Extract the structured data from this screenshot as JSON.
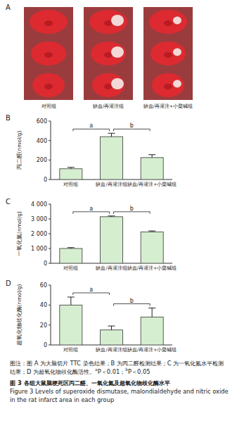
{
  "panel_a": {
    "label": "A",
    "groups": [
      "对照组",
      "缺血/再灌注组",
      "缺血/再灌注+小檗碱组"
    ]
  },
  "chart_data": [
    {
      "type": "bar",
      "title": "B",
      "categories": [
        "对照组",
        "缺血/再灌注组",
        "缺血/再灌注+小檗碱组"
      ],
      "values": [
        110,
        440,
        225
      ],
      "errors": [
        15,
        35,
        30
      ],
      "color": "#d6eed0",
      "ylabel": "丙二醛(nmol/g)",
      "ylim": [
        0,
        600
      ],
      "yticks": [
        0,
        200,
        400,
        600
      ],
      "grid": false,
      "annotations": [
        {
          "text": "a",
          "between": [
            "对照组",
            "缺血/再灌注组"
          ]
        },
        {
          "text": "b",
          "between": [
            "缺血/再灌注组",
            "缺血/再灌注+小檗碱组"
          ]
        }
      ]
    },
    {
      "type": "bar",
      "title": "C",
      "categories": [
        "对照组",
        "缺血/再灌注组",
        "缺血/再灌注+小檗碱组"
      ],
      "values": [
        1000,
        3150,
        2120
      ],
      "errors": [
        60,
        50,
        70
      ],
      "color": "#d6eed0",
      "ylabel": "一氧化氮(nmol/g)",
      "ylim": [
        0,
        4000
      ],
      "yticks": [
        0,
        {
          "value": 1000,
          "label": "1 000"
        },
        {
          "value": 2000,
          "label": "2 000"
        },
        {
          "value": 3000,
          "label": "3 000"
        },
        {
          "value": 4000,
          "label": "4 000"
        }
      ],
      "grid": false,
      "annotations": [
        {
          "text": "a",
          "between": [
            "对照组",
            "缺血/再灌注组"
          ]
        },
        {
          "text": "b",
          "between": [
            "缺血/再灌注组",
            "缺血/再灌注+小檗碱组"
          ]
        }
      ]
    },
    {
      "type": "bar",
      "title": "D",
      "categories": [
        "对照组",
        "缺血/再灌注组",
        "缺血/再灌注+小檗碱组"
      ],
      "values": [
        40,
        15,
        28
      ],
      "errors": [
        8,
        4,
        9
      ],
      "color": "#d6eed0",
      "ylabel": "超氧化物歧化酶(nmol/g)",
      "ylim": [
        0,
        60
      ],
      "yticks": [
        0,
        20,
        40,
        60
      ],
      "grid": false,
      "annotations": [
        {
          "text": "a",
          "between": [
            "对照组",
            "缺血/再灌注组"
          ]
        },
        {
          "text": "b",
          "between": [
            "缺血/再灌注组",
            "缺血/再灌注+小檗碱组"
          ]
        }
      ]
    }
  ],
  "caption": {
    "note": [
      {
        "text": "图注：图 A 为大脑切片 TTC 染色结果；B 为丙二醛检测结果；C 为一氧化氮水平检测结果；D 为超氧化物歧化酶活性。"
      },
      {
        "text": "a",
        "superscript": true
      },
      {
        "text": "P＜0.01；"
      },
      {
        "text": "b",
        "superscript": true
      },
      {
        "text": "P＜0.05"
      }
    ],
    "title_zh": "图 3   各组大鼠脑梗死区丙二醛、一氧化氮及超氧化物歧化酶水平",
    "title_en": "Figure 3    Levels of superoxide dismutase, malondialdehyde and nitric oxide in the rat infarct area in each group"
  }
}
